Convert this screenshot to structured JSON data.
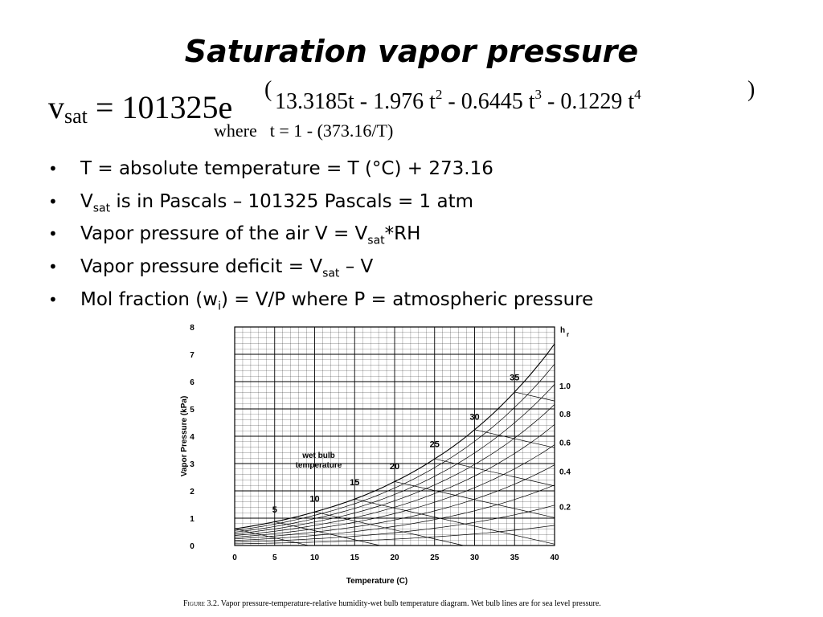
{
  "slide": {
    "title": "Saturation vapor pressure"
  },
  "formula": {
    "lhs_var": "v",
    "lhs_sub": "sat",
    "equals_base": "= 101325e",
    "open_paren": "(",
    "close_paren": ")",
    "exponent": {
      "t1": "13.3185t - 1.976 t",
      "p1": "2",
      "t2": " - 0.6445 t",
      "p2": "3",
      "t3": " - 0.1229 t",
      "p3": "4"
    },
    "where_label": "where",
    "t_definition": "t = 1 - (373.16/T)"
  },
  "bullets": {
    "b1": "T = absolute temperature = T (°C) + 273.16",
    "b2_v": "V",
    "b2_sub": "sat",
    "b2_rest": " is in Pascals – 101325 Pascals = 1 atm",
    "b3_pre": "Vapor pressure of the air V = V",
    "b3_sub": "sat",
    "b3_post": "*RH",
    "b4_pre": "Vapor pressure deficit = V",
    "b4_sub": "sat",
    "b4_post": " – V",
    "b5_pre": "Mol fraction (w",
    "b5_sub": "i",
    "b5_post": ") = V/P where P = atmospheric pressure"
  },
  "chart_data": {
    "type": "line",
    "xlabel": "Temperature (C)",
    "ylabel": "Vapor Pressure (kPa)",
    "xlim": [
      0,
      40
    ],
    "ylim": [
      0,
      8
    ],
    "x_ticks": [
      "0",
      "5",
      "10",
      "15",
      "20",
      "25",
      "30",
      "35",
      "40"
    ],
    "y_ticks": [
      "0",
      "1",
      "2",
      "3",
      "4",
      "5",
      "6",
      "7",
      "8"
    ],
    "grid": true,
    "rh_axis_label": "h",
    "rh_axis_sub": "r",
    "rh_values": [
      1.0,
      0.9,
      0.8,
      0.7,
      0.6,
      0.5,
      0.4,
      0.3,
      0.2,
      0.1
    ],
    "rh_tick_labels": [
      {
        "value": 1.0,
        "text": "1.0"
      },
      {
        "value": 0.8,
        "text": "0.8"
      },
      {
        "value": 0.6,
        "text": "0.6"
      },
      {
        "value": 0.4,
        "text": "0.4"
      },
      {
        "value": 0.2,
        "text": "0.2"
      }
    ],
    "series": [
      {
        "x": [
          0,
          5,
          10,
          15,
          20,
          25,
          30,
          35,
          40
        ],
        "y": [
          0.61,
          0.87,
          1.23,
          1.7,
          2.34,
          3.17,
          4.24,
          5.62,
          7.38
        ]
      }
    ],
    "wet_bulb_label_line1": "wet  bulb",
    "wet_bulb_label_line2": "temperature",
    "wet_bulb_temps": [
      0,
      5,
      10,
      15,
      20,
      25,
      30,
      35
    ],
    "wet_bulb_labels": [
      {
        "text": "5",
        "x": 5,
        "y": 1.2
      },
      {
        "text": "10",
        "x": 10,
        "y": 1.6
      },
      {
        "text": "15",
        "x": 15,
        "y": 2.2
      },
      {
        "text": "20",
        "x": 20,
        "y": 2.8
      },
      {
        "text": "25",
        "x": 25,
        "y": 3.6
      },
      {
        "text": "30",
        "x": 30,
        "y": 4.6
      },
      {
        "text": "35",
        "x": 35,
        "y": 6.05
      }
    ]
  },
  "caption": {
    "figure_label": "Figure 3.2.",
    "text": "  Vapor pressure-temperature-relative humidity-wet bulb temperature diagram. Wet bulb lines are for sea level pressure."
  }
}
